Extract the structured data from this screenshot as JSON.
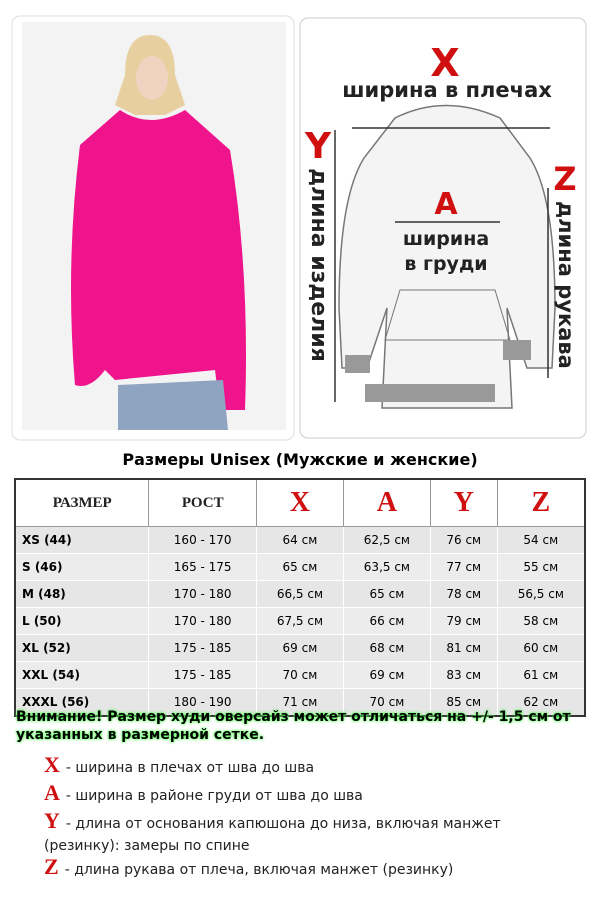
{
  "diagram": {
    "x": "X",
    "shoulders": "ширина в плечах",
    "y": "Y",
    "length": "длина изделия",
    "a": "A",
    "chest_line1": "ширина",
    "chest_line2": "в груди",
    "z": "Z",
    "sleeve": "длина рукава"
  },
  "title": "Размеры Unisex (Мужские и женские)",
  "table": {
    "header": [
      "РАЗМЕР",
      "РОСТ",
      "X",
      "A",
      "Y",
      "Z"
    ],
    "rows": [
      [
        "XS (44)",
        "160 - 170",
        "64 см",
        "62,5 см",
        "76 см",
        "54 см"
      ],
      [
        "S (46)",
        "165 - 175",
        "65 см",
        "63,5 см",
        "77 см",
        "55 см"
      ],
      [
        "M (48)",
        "170 - 180",
        "66,5 см",
        "65 см",
        "78 см",
        "56,5 см"
      ],
      [
        "L (50)",
        "170 - 180",
        "67,5 см",
        "66 см",
        "79 см",
        "58 см"
      ],
      [
        "XL (52)",
        "175 - 185",
        "69 см",
        "68 см",
        "81 см",
        "60 см"
      ],
      [
        "XXL (54)",
        "175 - 185",
        "70 см",
        "69 см",
        "83 см",
        "61 см"
      ],
      [
        "XXXL (56)",
        "180 - 190",
        "71 см",
        "70 см",
        "85 см",
        "62 см"
      ]
    ]
  },
  "warning": "Внимание! Размер худи оверсайз может отличаться на +/- 1,5 см от указанных в размерной сетке.",
  "legend": [
    {
      "letter": "X",
      "text": "- ширина в плечах от шва до шва"
    },
    {
      "letter": "A",
      "text": "- ширина в районе груди от шва до шва"
    },
    {
      "letter": "Y",
      "text": "- длина от основания капюшона до низа, включая манжет (резинку): замеры по спине"
    },
    {
      "letter": "Z",
      "text": "- длина рукава от плеча, включая манжет (резинку)"
    }
  ]
}
